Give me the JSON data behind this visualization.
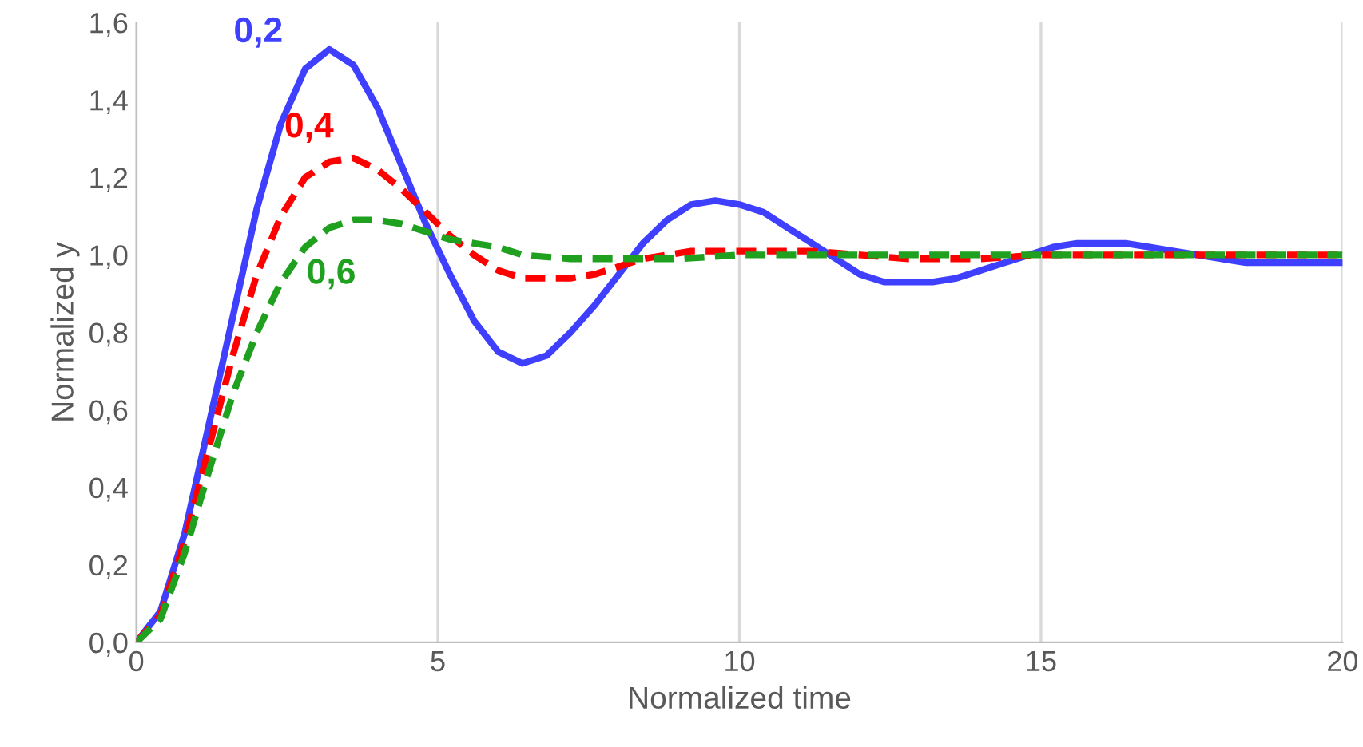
{
  "chart_data": {
    "type": "line",
    "xlabel": "Normalized time",
    "ylabel": "Normalized y",
    "xlim": [
      0,
      20
    ],
    "xticks": [
      0,
      5,
      10,
      15,
      20
    ],
    "ylim": [
      0,
      1.6
    ],
    "yticks": [
      {
        "value": 0,
        "label": "0,0"
      },
      {
        "value": 0.2,
        "label": "0,2"
      },
      {
        "value": 0.4,
        "label": "0,4"
      },
      {
        "value": 0.6,
        "label": "0,6"
      },
      {
        "value": 0.8,
        "label": "0,8"
      },
      {
        "value": 1.0,
        "label": "1,0"
      },
      {
        "value": 1.2,
        "label": "1,2"
      },
      {
        "value": 1.4,
        "label": "1,4"
      },
      {
        "value": 1.6,
        "label": "1,6"
      }
    ],
    "grid": "x",
    "legend": false,
    "series": [
      {
        "name": "0,2",
        "color": "#3f3fff",
        "line_style": "solid",
        "x": [
          0,
          0.4,
          0.8,
          1.2,
          1.6,
          2.0,
          2.4,
          2.8,
          3.2,
          3.6,
          4.0,
          4.4,
          4.8,
          5.2,
          5.6,
          6.0,
          6.4,
          6.8,
          7.2,
          7.6,
          8.0,
          8.4,
          8.8,
          9.2,
          9.6,
          10.0,
          10.4,
          10.8,
          11.2,
          11.6,
          12.0,
          12.4,
          12.8,
          13.2,
          13.6,
          14.0,
          14.4,
          14.8,
          15.2,
          15.6,
          16.0,
          16.4,
          16.8,
          17.2,
          17.6,
          18.0,
          18.4,
          18.8,
          19.2,
          19.6,
          20
        ],
        "values": [
          0,
          0.08,
          0.28,
          0.56,
          0.84,
          1.12,
          1.34,
          1.48,
          1.53,
          1.49,
          1.38,
          1.23,
          1.08,
          0.95,
          0.83,
          0.75,
          0.72,
          0.74,
          0.8,
          0.87,
          0.95,
          1.03,
          1.09,
          1.13,
          1.14,
          1.13,
          1.11,
          1.07,
          1.03,
          0.99,
          0.95,
          0.93,
          0.93,
          0.93,
          0.94,
          0.96,
          0.98,
          1.0,
          1.02,
          1.03,
          1.03,
          1.03,
          1.02,
          1.01,
          1.0,
          0.99,
          0.98,
          0.98,
          0.98,
          0.98,
          0.98
        ]
      },
      {
        "name": "0,4",
        "color": "#ff0000",
        "line_style": "dashed",
        "x": [
          0,
          0.4,
          0.8,
          1.2,
          1.6,
          2.0,
          2.4,
          2.8,
          3.2,
          3.6,
          4.0,
          4.4,
          4.8,
          5.2,
          5.6,
          6.0,
          6.4,
          6.8,
          7.2,
          7.6,
          8.0,
          8.4,
          8.8,
          9.2,
          9.6,
          10.4,
          11.2,
          12,
          12.8,
          14,
          15,
          16,
          20
        ],
        "values": [
          0,
          0.07,
          0.26,
          0.5,
          0.74,
          0.95,
          1.1,
          1.2,
          1.24,
          1.25,
          1.22,
          1.17,
          1.11,
          1.05,
          1.0,
          0.96,
          0.94,
          0.94,
          0.94,
          0.95,
          0.97,
          0.99,
          1.0,
          1.01,
          1.01,
          1.01,
          1.01,
          1.0,
          0.99,
          0.99,
          1.0,
          1.0,
          1.0
        ]
      },
      {
        "name": "0,6",
        "color": "#1fa01f",
        "line_style": "dashed",
        "x": [
          0,
          0.4,
          0.8,
          1.2,
          1.6,
          2.0,
          2.4,
          2.8,
          3.2,
          3.6,
          4.0,
          4.4,
          4.8,
          5.2,
          5.6,
          6.0,
          6.4,
          7.2,
          8,
          9,
          10,
          12,
          16,
          20
        ],
        "values": [
          0,
          0.06,
          0.23,
          0.44,
          0.64,
          0.8,
          0.93,
          1.02,
          1.07,
          1.09,
          1.09,
          1.08,
          1.06,
          1.04,
          1.03,
          1.02,
          1.0,
          0.99,
          0.99,
          0.99,
          1.0,
          1.0,
          1.0,
          1.0
        ]
      }
    ]
  }
}
